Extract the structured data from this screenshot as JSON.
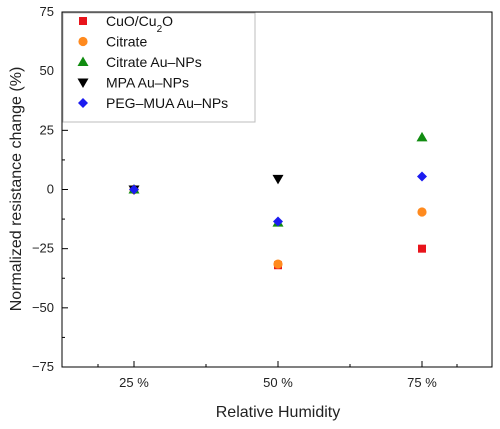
{
  "chart_data": {
    "type": "scatter",
    "xlabel": "Relative Humidity",
    "ylabel": "Normalized resistance change (%)",
    "categories": [
      "25 %",
      "50 %",
      "75 %"
    ],
    "ylim": [
      -75,
      75
    ],
    "yticks": [
      -75,
      -50,
      -25,
      0,
      25,
      50,
      75
    ],
    "yticklabels": [
      "−75",
      "−50",
      "−25",
      "0",
      "25",
      "50",
      "75"
    ],
    "legend_position": "top-left",
    "grid": false,
    "series": [
      {
        "name": "CuO/Cu2O",
        "label_main": "CuO/Cu",
        "label_sub": "2",
        "label_tail": "O",
        "marker": "square",
        "color": "#e8141b",
        "values": [
          0,
          -32,
          -25
        ]
      },
      {
        "name": "Citrate",
        "label": "Citrate",
        "marker": "circle",
        "color": "#ff8a1e",
        "values": [
          0,
          -31.5,
          -9.5
        ]
      },
      {
        "name": "Citrate Au–NPs",
        "label": "Citrate Au–NPs",
        "marker": "triangle-up",
        "color": "#118c11",
        "values": [
          0,
          -14,
          22
        ]
      },
      {
        "name": "MPA Au–NPs",
        "label": "MPA Au–NPs",
        "marker": "triangle-down",
        "color": "#000000",
        "values": [
          0,
          4.5,
          null
        ]
      },
      {
        "name": "PEG–MUA Au–NPs",
        "label": "PEG–MUA Au–NPs",
        "marker": "diamond",
        "color": "#1c1cf0",
        "values": [
          0,
          -13.5,
          5.5
        ]
      }
    ]
  }
}
